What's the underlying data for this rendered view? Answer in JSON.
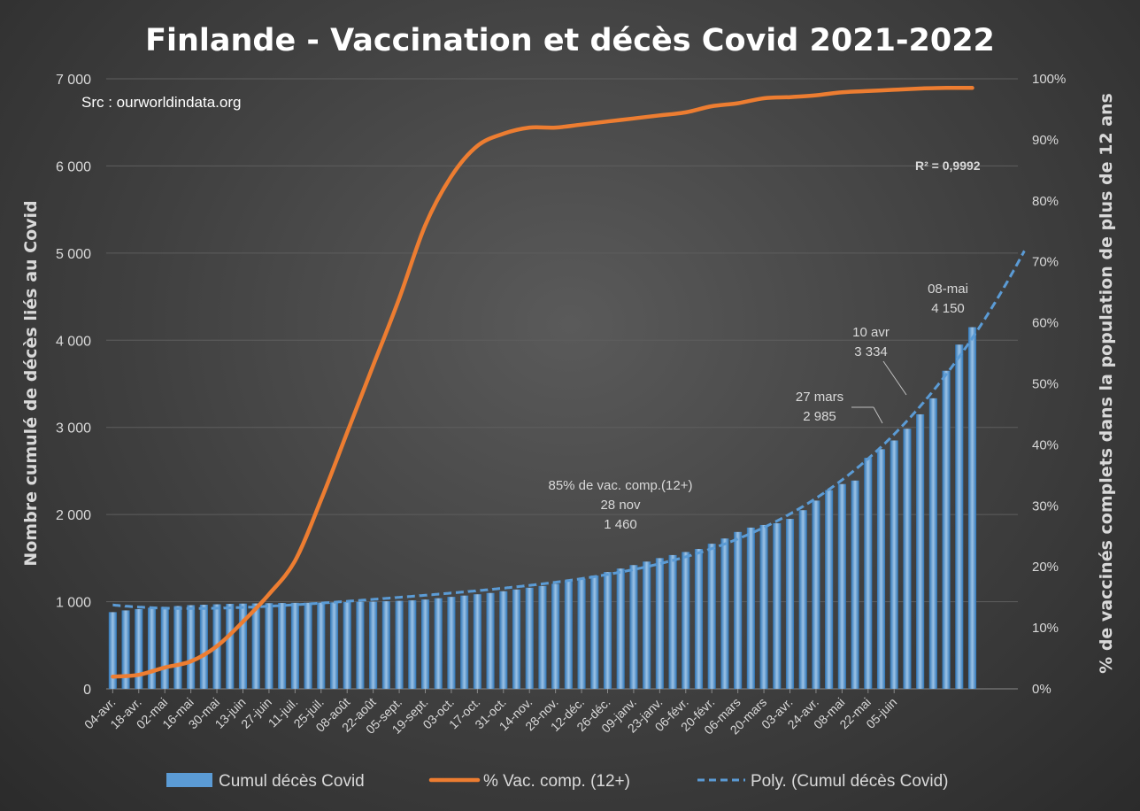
{
  "chart_data": {
    "type": "bar",
    "title": "Finlande - Vaccination et décès Covid 2021-2022",
    "source": "Src : ourworldindata.org",
    "ylabel": "Nombre cumulé de décès liés au Covid",
    "y2label": "% de vaccinés complets dans  la population de plus de 12 ans",
    "ylim": [
      0,
      7000
    ],
    "y2lim": [
      0,
      100
    ],
    "yticks": [
      "0",
      "1 000",
      "2 000",
      "3 000",
      "4 000",
      "5 000",
      "6 000",
      "7 000"
    ],
    "y2ticks": [
      "0%",
      "10%",
      "20%",
      "30%",
      "40%",
      "50%",
      "60%",
      "70%",
      "80%",
      "90%",
      "100%"
    ],
    "xtick_labels": [
      "04-avr.",
      "18-avr.",
      "02-mai",
      "16-mai",
      "30-mai",
      "13-juin",
      "27-juin",
      "11-juil.",
      "25-juil.",
      "08-août",
      "22-août",
      "05-sept.",
      "19-sept.",
      "03-oct.",
      "17-oct.",
      "31-oct.",
      "14-nov.",
      "28-nov.",
      "12-déc.",
      "26-déc.",
      "09-janv.",
      "23-janv.",
      "06-févr.",
      "20-févr.",
      "06-mars",
      "20-mars",
      "03-avr.",
      "24-avr.",
      "08-mai",
      "22-mai",
      "05-juin"
    ],
    "series": [
      {
        "name": "Cumul décès Covid",
        "type": "bar",
        "color": "#5b9bd5",
        "values": [
          880,
          900,
          915,
          930,
          940,
          950,
          960,
          965,
          970,
          975,
          978,
          980,
          983,
          985,
          987,
          988,
          990,
          992,
          995,
          998,
          1000,
          1005,
          1010,
          1015,
          1025,
          1040,
          1055,
          1070,
          1085,
          1100,
          1120,
          1140,
          1160,
          1180,
          1205,
          1235,
          1265,
          1300,
          1340,
          1380,
          1420,
          1460,
          1500,
          1535,
          1570,
          1605,
          1665,
          1725,
          1800,
          1850,
          1880,
          1900,
          1950,
          2050,
          2160,
          2280,
          2350,
          2390,
          2650,
          2750,
          2850,
          2985,
          3150,
          3334,
          3650,
          3950,
          4150
        ]
      },
      {
        "name": "% Vac. comp. (12+)",
        "type": "line",
        "axis": "right",
        "color": "#ed7d31",
        "x": [
          0,
          2,
          4,
          6,
          8,
          10,
          12,
          14,
          16,
          18,
          20,
          22,
          24,
          26,
          28,
          30,
          32,
          34,
          36,
          38,
          40,
          42,
          44,
          46,
          48,
          50,
          52,
          54,
          56,
          58,
          60,
          62,
          64,
          66
        ],
        "values": [
          2,
          2.3,
          3.5,
          4.5,
          7,
          11,
          15.5,
          21,
          31,
          42,
          53,
          64,
          76,
          84,
          89,
          91,
          92,
          92,
          92.5,
          93,
          93.5,
          94,
          94.5,
          95.5,
          96,
          96.8,
          97,
          97.3,
          97.8,
          98,
          98.2,
          98.4,
          98.5,
          98.5
        ]
      },
      {
        "name": "Poly. (Cumul décès Covid)",
        "type": "trendline",
        "color": "#5b9bd5",
        "r2": "R² = 0,9992"
      }
    ],
    "annotations": [
      {
        "lines": [
          "85% de vac. comp.(12+)",
          "28 nov",
          "1 460"
        ]
      },
      {
        "lines": [
          "27 mars",
          "2 985"
        ]
      },
      {
        "lines": [
          "10 avr",
          "3 334"
        ]
      },
      {
        "lines": [
          "08-mai",
          "4 150"
        ]
      }
    ],
    "legend": "bottom",
    "grid": true
  }
}
